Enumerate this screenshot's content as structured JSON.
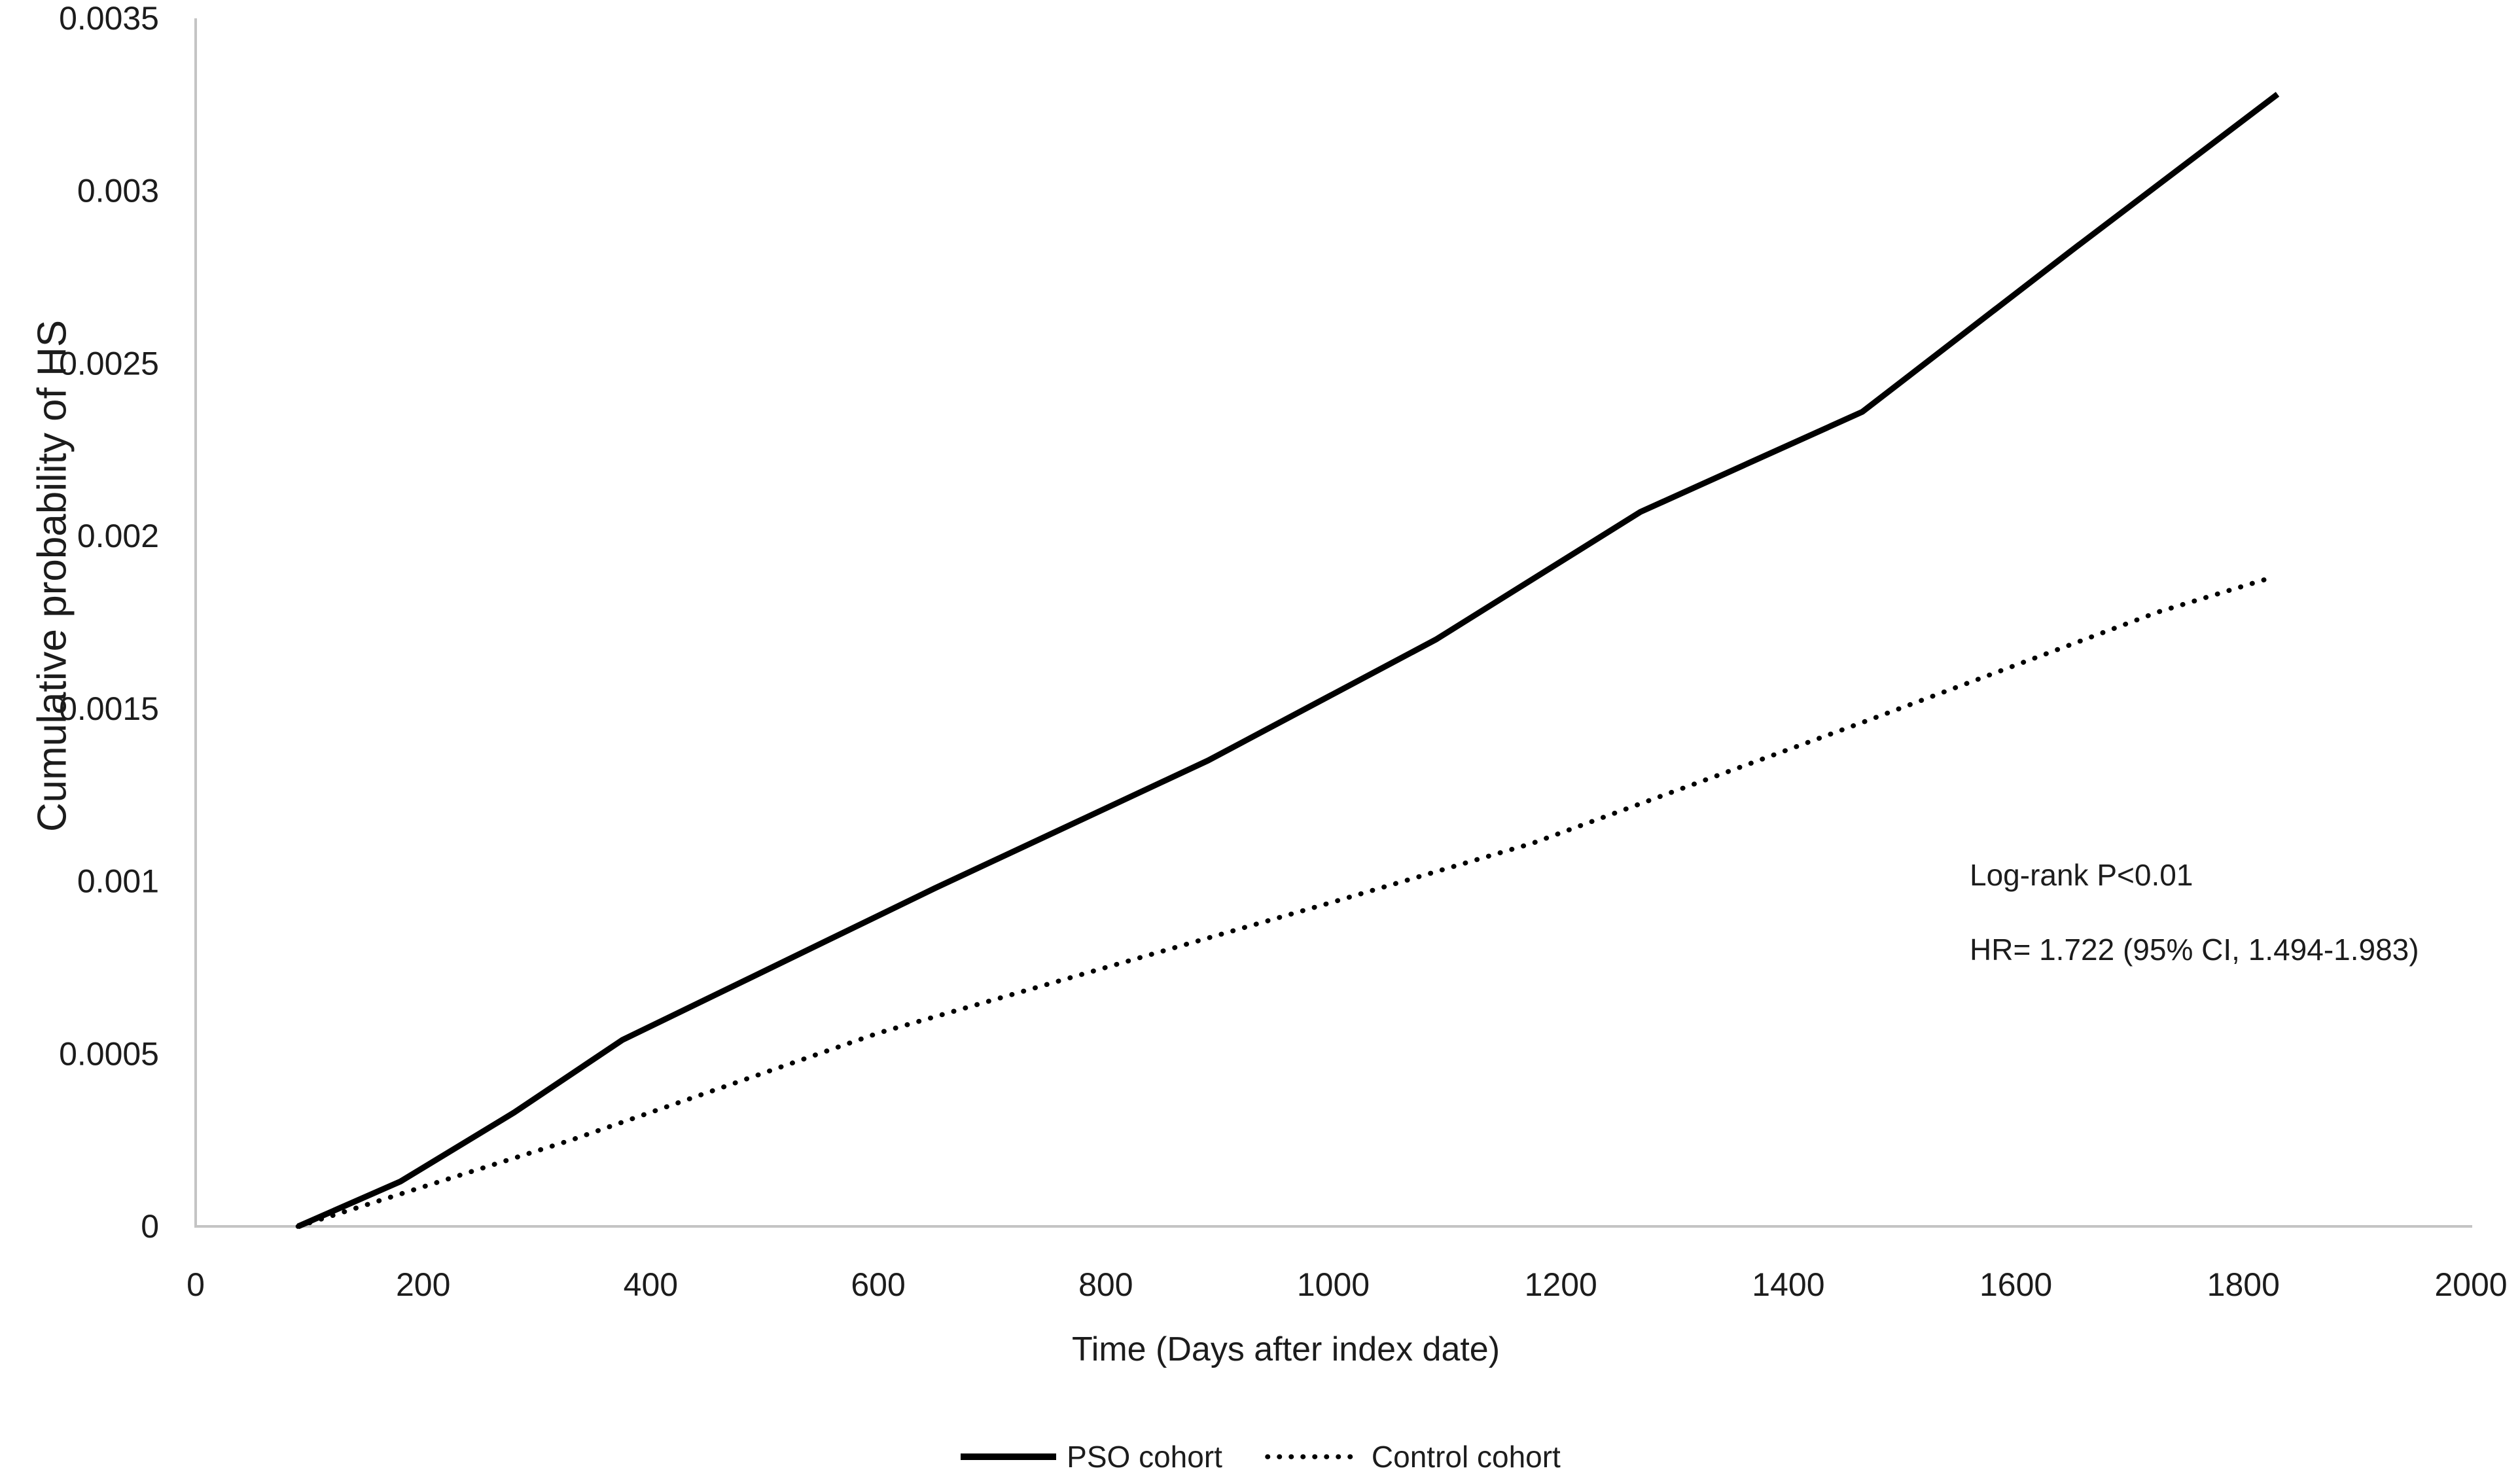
{
  "chart_data": {
    "type": "line",
    "title": "",
    "xlabel": "Time (Days after index date)",
    "ylabel": "Cumulative probability of HS",
    "xlim": [
      0,
      2000
    ],
    "ylim": [
      0,
      0.0035
    ],
    "grid": false,
    "legend_position": "bottom-center",
    "x_ticks": [
      {
        "value": 0,
        "label": "0"
      },
      {
        "value": 200,
        "label": "200"
      },
      {
        "value": 400,
        "label": "400"
      },
      {
        "value": 600,
        "label": "600"
      },
      {
        "value": 800,
        "label": "800"
      },
      {
        "value": 1000,
        "label": "1000"
      },
      {
        "value": 1200,
        "label": "1200"
      },
      {
        "value": 1400,
        "label": "1400"
      },
      {
        "value": 1600,
        "label": "1600"
      },
      {
        "value": 1800,
        "label": "1800"
      },
      {
        "value": 2000,
        "label": "2000"
      }
    ],
    "y_ticks": [
      {
        "value": 0,
        "label": "0"
      },
      {
        "value": 0.0005,
        "label": "0.0005"
      },
      {
        "value": 0.001,
        "label": "0.001"
      },
      {
        "value": 0.0015,
        "label": "0.0015"
      },
      {
        "value": 0.002,
        "label": "0.002"
      },
      {
        "value": 0.0025,
        "label": "0.0025"
      },
      {
        "value": 0.003,
        "label": "0.003"
      },
      {
        "value": 0.0035,
        "label": "0.0035"
      }
    ],
    "series": [
      {
        "name": "PSO cohort",
        "style": "solid",
        "points": [
          [
            90,
            0
          ],
          [
            180,
            0.00013
          ],
          [
            280,
            0.00033
          ],
          [
            375,
            0.00054
          ],
          [
            650,
            0.00098
          ],
          [
            890,
            0.00135
          ],
          [
            1090,
            0.0017
          ],
          [
            1270,
            0.00207
          ],
          [
            1465,
            0.00236
          ],
          [
            1650,
            0.00283
          ],
          [
            1830,
            0.00328
          ]
        ]
      },
      {
        "name": "Control cohort",
        "style": "dotted",
        "points": [
          [
            90,
            0
          ],
          [
            330,
            0.00025
          ],
          [
            600,
            0.00056
          ],
          [
            800,
            0.00075
          ],
          [
            1000,
            0.00094
          ],
          [
            1175,
            0.00111
          ],
          [
            1465,
            0.00146
          ],
          [
            1725,
            0.00178
          ],
          [
            1825,
            0.00188
          ]
        ]
      }
    ],
    "annotations": [
      {
        "text": "Log-rank P<0.01"
      },
      {
        "text": "HR= 1.722 (95% CI, 1.494-1.983)"
      }
    ],
    "colors": {
      "line": "#000000",
      "axis": "#c4c4c4",
      "text": "#1c1c1c"
    }
  }
}
